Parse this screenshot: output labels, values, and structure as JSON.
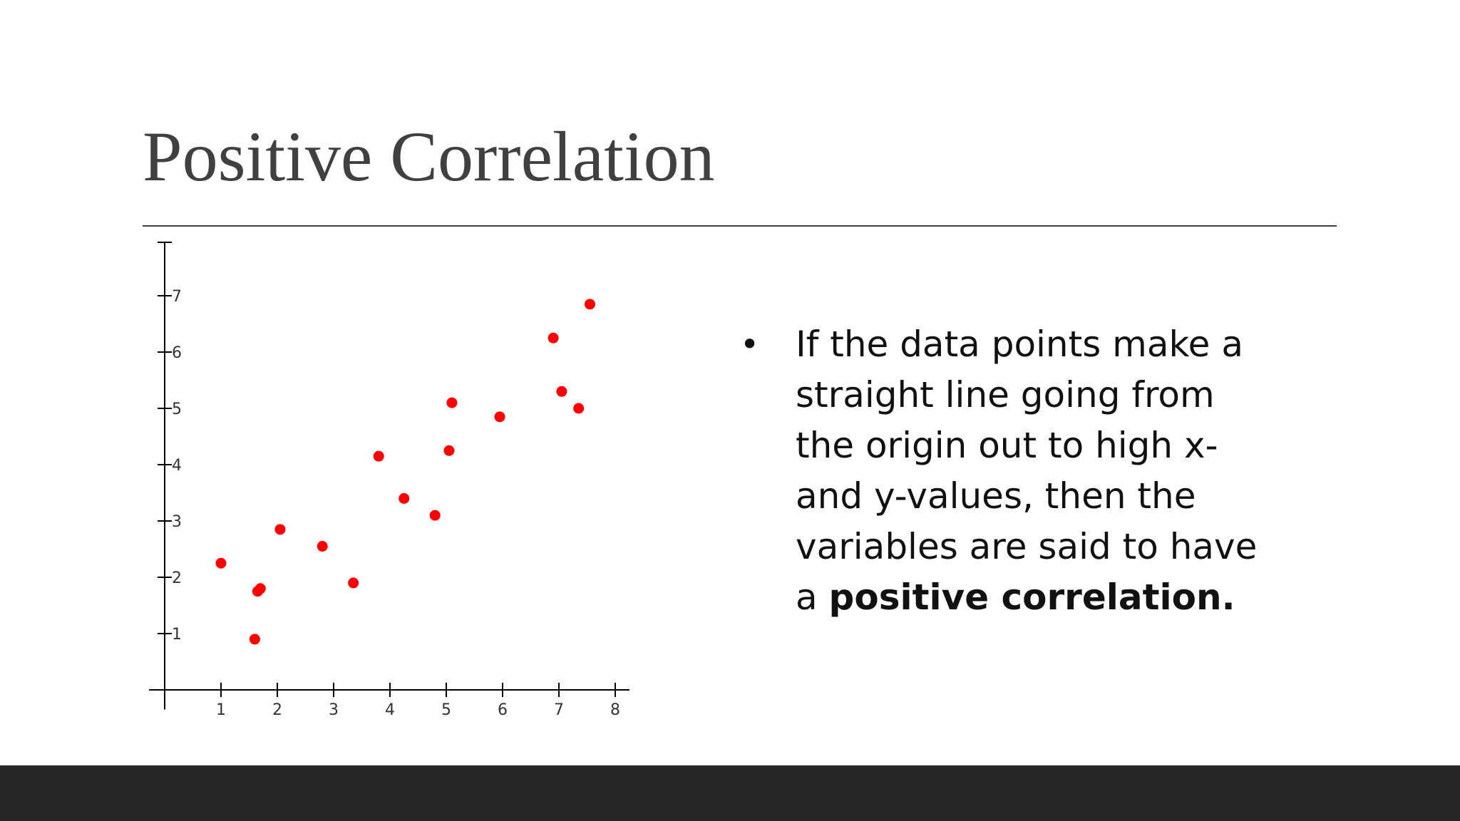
{
  "slide": {
    "title": "Positive Correlation",
    "bullet_symbol": "•",
    "bullet_text_before": "If the data points make a straight line going from the origin out to high x- and y-values, then the variables are said to have a ",
    "bullet_text_bold": "positive correlation."
  },
  "chart_data": {
    "type": "scatter",
    "title": "",
    "xlabel": "",
    "ylabel": "",
    "xlim": [
      0,
      8
    ],
    "ylim": [
      -0.5,
      8
    ],
    "grid": false,
    "x_ticks": [
      "1",
      "2",
      "3",
      "4",
      "5",
      "6",
      "7",
      "8"
    ],
    "y_ticks": [
      "1",
      "2",
      "3",
      "4",
      "5",
      "6",
      "7"
    ],
    "point_color": "#ff0000",
    "points": [
      {
        "x": 1.0,
        "y": 2.25
      },
      {
        "x": 1.6,
        "y": 0.9
      },
      {
        "x": 1.65,
        "y": 1.75
      },
      {
        "x": 1.7,
        "y": 1.8
      },
      {
        "x": 2.05,
        "y": 2.85
      },
      {
        "x": 2.8,
        "y": 2.55
      },
      {
        "x": 3.35,
        "y": 1.9
      },
      {
        "x": 3.8,
        "y": 4.15
      },
      {
        "x": 4.25,
        "y": 3.4
      },
      {
        "x": 4.8,
        "y": 3.1
      },
      {
        "x": 5.05,
        "y": 4.25
      },
      {
        "x": 5.1,
        "y": 5.1
      },
      {
        "x": 5.95,
        "y": 4.85
      },
      {
        "x": 6.9,
        "y": 6.25
      },
      {
        "x": 7.05,
        "y": 5.3
      },
      {
        "x": 7.35,
        "y": 5.0
      },
      {
        "x": 7.55,
        "y": 6.85
      }
    ]
  }
}
